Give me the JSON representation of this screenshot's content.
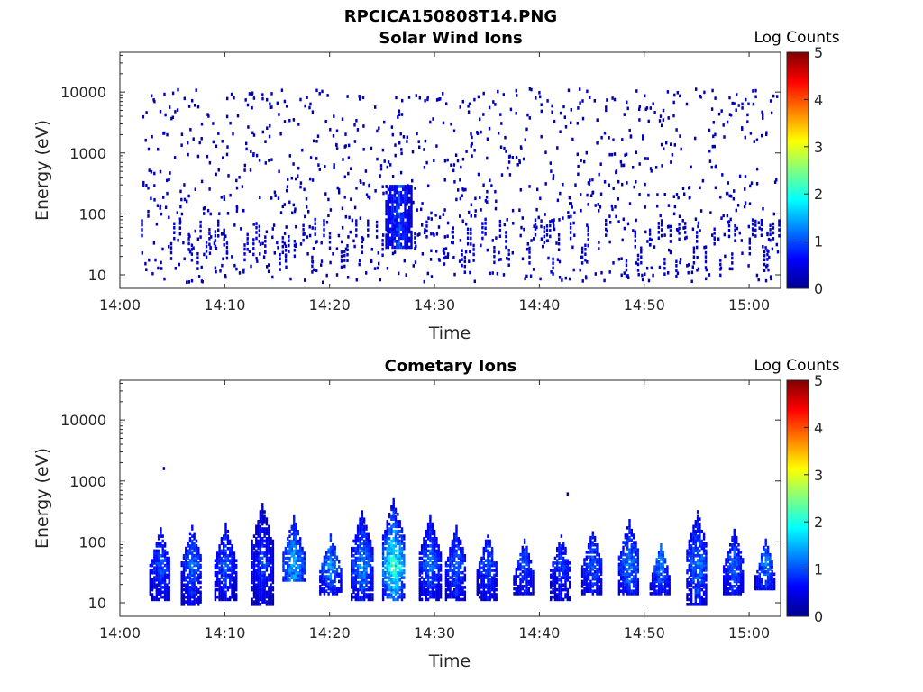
{
  "figure_title": "RPCICA150808T14.PNG",
  "chart_data": [
    {
      "type": "heatmap",
      "title": "Solar Wind Ions",
      "xlabel": "Time",
      "ylabel": "Energy (eV)",
      "x_ticks": [
        "14:00",
        "14:10",
        "14:20",
        "14:30",
        "14:40",
        "14:50",
        "15:00"
      ],
      "x_range_minutes": [
        0,
        63
      ],
      "y_ticks": [
        "10",
        "100",
        "1000",
        "10000"
      ],
      "y_scale": "log",
      "y_range_eV": [
        6,
        45000
      ],
      "colorbar": {
        "title": "Log Counts",
        "ticks": [
          "0",
          "1",
          "2",
          "3",
          "4",
          "5"
        ],
        "range": [
          0,
          5
        ],
        "colormap": "jet"
      },
      "features": [
        {
          "desc": "sparse single counts across 10-10000 eV",
          "t_start": 2,
          "t_end": 63,
          "log_counts": 0.15
        },
        {
          "desc": "enhanced low-energy burst",
          "t_center": 26.5,
          "energy_eV": [
            30,
            300
          ],
          "log_counts_max": 1.2
        }
      ]
    },
    {
      "type": "heatmap",
      "title": "Cometary Ions",
      "xlabel": "Time",
      "ylabel": "Energy (eV)",
      "x_ticks": [
        "14:00",
        "14:10",
        "14:20",
        "14:30",
        "14:40",
        "14:50",
        "15:00"
      ],
      "x_range_minutes": [
        0,
        63
      ],
      "y_ticks": [
        "10",
        "100",
        "1000",
        "10000"
      ],
      "y_scale": "log",
      "y_range_eV": [
        6,
        45000
      ],
      "colorbar": {
        "title": "Log Counts",
        "ticks": [
          "0",
          "1",
          "2",
          "3",
          "4",
          "5"
        ],
        "range": [
          0,
          5
        ],
        "colormap": "jet"
      },
      "bursts": [
        {
          "t": 3.8,
          "e_lo": 12,
          "e_hi": 180,
          "peak": 1.3
        },
        {
          "t": 6.8,
          "e_lo": 10,
          "e_hi": 200,
          "peak": 1.4
        },
        {
          "t": 10.0,
          "e_lo": 12,
          "e_hi": 220,
          "peak": 1.3
        },
        {
          "t": 13.5,
          "e_lo": 10,
          "e_hi": 450,
          "peak": 1.2
        },
        {
          "t": 16.5,
          "e_lo": 25,
          "e_hi": 300,
          "peak": 1.9
        },
        {
          "t": 20.0,
          "e_lo": 15,
          "e_hi": 150,
          "peak": 1.6
        },
        {
          "t": 23.0,
          "e_lo": 12,
          "e_hi": 350,
          "peak": 1.7
        },
        {
          "t": 26.0,
          "e_lo": 12,
          "e_hi": 550,
          "peak": 2.7
        },
        {
          "t": 29.5,
          "e_lo": 12,
          "e_hi": 280,
          "peak": 1.5
        },
        {
          "t": 32.0,
          "e_lo": 12,
          "e_hi": 200,
          "peak": 1.4
        },
        {
          "t": 35.0,
          "e_lo": 12,
          "e_hi": 150,
          "peak": 1.3
        },
        {
          "t": 38.5,
          "e_lo": 15,
          "e_hi": 120,
          "peak": 1.2
        },
        {
          "t": 42.0,
          "e_lo": 12,
          "e_hi": 150,
          "peak": 1.2
        },
        {
          "t": 45.0,
          "e_lo": 15,
          "e_hi": 180,
          "peak": 1.3
        },
        {
          "t": 48.5,
          "e_lo": 15,
          "e_hi": 250,
          "peak": 1.6
        },
        {
          "t": 51.5,
          "e_lo": 15,
          "e_hi": 100,
          "peak": 1.5
        },
        {
          "t": 55.0,
          "e_lo": 10,
          "e_hi": 350,
          "peak": 1.6
        },
        {
          "t": 58.5,
          "e_lo": 15,
          "e_hi": 170,
          "peak": 1.4
        },
        {
          "t": 61.5,
          "e_lo": 18,
          "e_hi": 120,
          "peak": 1.5
        }
      ],
      "isolated_points": [
        {
          "t": 4.1,
          "energy_eV": 1700,
          "log_counts": 0.1
        },
        {
          "t": 42.6,
          "energy_eV": 650,
          "log_counts": 0.1
        }
      ]
    }
  ]
}
